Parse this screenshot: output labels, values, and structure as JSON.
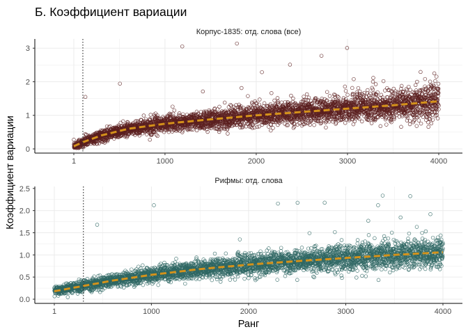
{
  "title": "Б. Коэффициент вариации",
  "xlabel": "Ранг",
  "ylabel": "Коэффициент вариации",
  "colors": {
    "panel_top_points": "#5a1f1f",
    "panel_bottom_points": "#2e6663",
    "trend": "#d4921b",
    "vline": "#333333",
    "grid": "#ebebeb"
  },
  "chart_data": [
    {
      "type": "scatter",
      "panel": "Корпус-1835: отд. слова (все)",
      "xlim": [
        1,
        4000
      ],
      "ylim": [
        0,
        3.15
      ],
      "xticks": [
        1,
        1000,
        2000,
        3000,
        4000
      ],
      "xtick_labels": [
        "1",
        "1000",
        "2000",
        "3000",
        "4000"
      ],
      "yticks": [
        0,
        1,
        2,
        3
      ],
      "ytick_labels": [
        "0",
        "1",
        "2",
        "3"
      ],
      "vline_x": 100,
      "n_points": 4000,
      "trend": {
        "x": [
          1,
          100,
          300,
          600,
          1000,
          1500,
          2000,
          2500,
          3000,
          3500,
          4000
        ],
        "y": [
          0.08,
          0.2,
          0.4,
          0.6,
          0.75,
          0.88,
          1.0,
          1.1,
          1.2,
          1.3,
          1.42
        ]
      },
      "spread_sd": 0.25,
      "outliers_max": 3.15,
      "grid": true
    },
    {
      "type": "scatter",
      "panel": "Рифмы: отд. слова",
      "xlim": [
        1,
        4000
      ],
      "ylim": [
        0,
        2.45
      ],
      "xticks": [
        1,
        1000,
        2000,
        3000,
        4000
      ],
      "xtick_labels": [
        "1",
        "1000",
        "2000",
        "3000",
        "4000"
      ],
      "yticks": [
        0,
        0.5,
        1,
        1.5,
        2,
        2.5
      ],
      "ytick_labels": [
        "0.0",
        "0.5",
        "1.0",
        "1.5",
        "2.0",
        "2.5"
      ],
      "vline_x": 300,
      "n_points": 4000,
      "trend": {
        "x": [
          1,
          300,
          600,
          1000,
          1500,
          2000,
          2500,
          3000,
          3500,
          4000
        ],
        "y": [
          0.18,
          0.3,
          0.42,
          0.55,
          0.68,
          0.78,
          0.86,
          0.93,
          1.0,
          1.06
        ]
      },
      "spread_sd": 0.18,
      "outliers_max": 2.4,
      "grid": true
    }
  ]
}
